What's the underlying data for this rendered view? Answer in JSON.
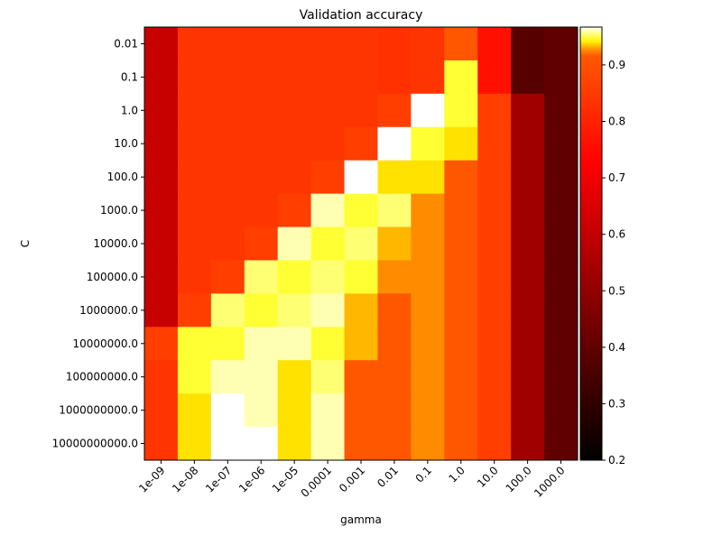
{
  "chart_data": {
    "type": "heatmap",
    "title": "Validation accuracy",
    "xlabel": "gamma",
    "ylabel": "C",
    "colormap": "hot",
    "color_range": [
      0.2,
      0.967
    ],
    "color_midpoint": 0.92,
    "colorbar_ticks": [
      "0.2",
      "0.3",
      "0.4",
      "0.5",
      "0.6",
      "0.7",
      "0.8",
      "0.9"
    ],
    "x_categories": [
      "1e-09",
      "1e-08",
      "1e-07",
      "1e-06",
      "1e-05",
      "0.0001",
      "0.001",
      "0.01",
      "0.1",
      "1.0",
      "10.0",
      "100.0",
      "1000.0"
    ],
    "y_categories": [
      "0.01",
      "0.1",
      "1.0",
      "10.0",
      "100.0",
      "1000.0",
      "10000.0",
      "100000.0",
      "1000000.0",
      "10000000.0",
      "100000000.0",
      "1000000000.0",
      "10000000000.0"
    ],
    "values": [
      [
        0.61,
        0.84,
        0.84,
        0.84,
        0.84,
        0.84,
        0.84,
        0.83,
        0.84,
        0.91,
        0.76,
        0.38,
        0.4
      ],
      [
        0.61,
        0.84,
        0.84,
        0.84,
        0.84,
        0.84,
        0.84,
        0.83,
        0.84,
        0.948,
        0.76,
        0.38,
        0.4
      ],
      [
        0.61,
        0.84,
        0.84,
        0.84,
        0.84,
        0.84,
        0.84,
        0.86,
        0.967,
        0.948,
        0.86,
        0.53,
        0.4
      ],
      [
        0.61,
        0.84,
        0.84,
        0.84,
        0.84,
        0.84,
        0.86,
        0.967,
        0.948,
        0.939,
        0.86,
        0.53,
        0.4
      ],
      [
        0.61,
        0.84,
        0.84,
        0.84,
        0.84,
        0.86,
        0.967,
        0.939,
        0.939,
        0.91,
        0.86,
        0.53,
        0.4
      ],
      [
        0.61,
        0.84,
        0.84,
        0.84,
        0.86,
        0.96,
        0.948,
        0.954,
        0.927,
        0.91,
        0.86,
        0.53,
        0.4
      ],
      [
        0.61,
        0.84,
        0.84,
        0.86,
        0.96,
        0.948,
        0.954,
        0.933,
        0.927,
        0.91,
        0.86,
        0.53,
        0.4
      ],
      [
        0.61,
        0.84,
        0.86,
        0.954,
        0.948,
        0.954,
        0.948,
        0.927,
        0.927,
        0.91,
        0.86,
        0.53,
        0.4
      ],
      [
        0.61,
        0.86,
        0.954,
        0.948,
        0.954,
        0.96,
        0.933,
        0.91,
        0.927,
        0.91,
        0.86,
        0.53,
        0.4
      ],
      [
        0.86,
        0.948,
        0.948,
        0.96,
        0.96,
        0.948,
        0.933,
        0.91,
        0.927,
        0.91,
        0.86,
        0.53,
        0.4
      ],
      [
        0.84,
        0.948,
        0.96,
        0.96,
        0.939,
        0.954,
        0.91,
        0.91,
        0.927,
        0.91,
        0.86,
        0.53,
        0.4
      ],
      [
        0.84,
        0.939,
        0.967,
        0.96,
        0.939,
        0.96,
        0.91,
        0.91,
        0.927,
        0.91,
        0.86,
        0.53,
        0.4
      ],
      [
        0.84,
        0.939,
        0.967,
        0.967,
        0.939,
        0.96,
        0.91,
        0.91,
        0.927,
        0.91,
        0.86,
        0.53,
        0.4
      ]
    ]
  }
}
